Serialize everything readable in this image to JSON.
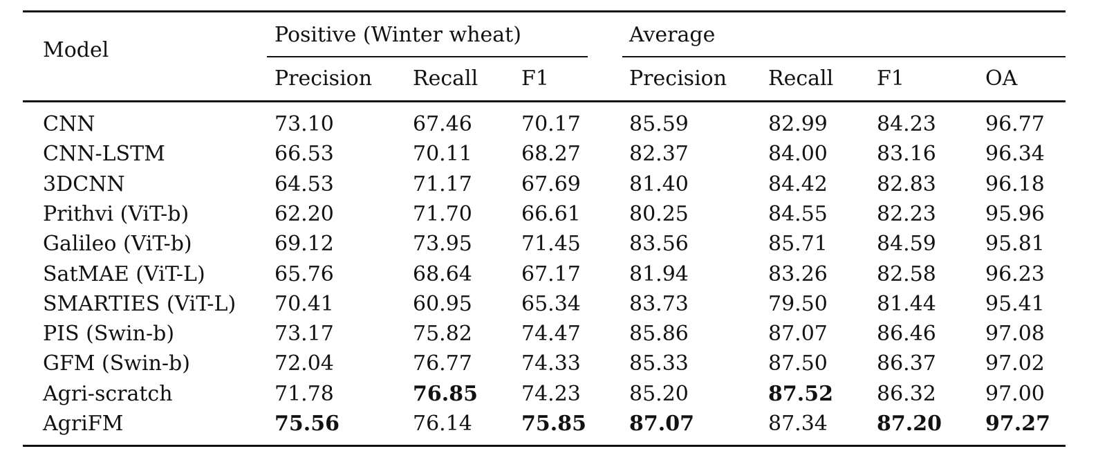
{
  "table": {
    "header": {
      "model_label": "Model",
      "group_positive": "Positive (Winter wheat)",
      "group_average": "Average",
      "sub_columns": [
        "Precision",
        "Recall",
        "F1",
        "Precision",
        "Recall",
        "F1",
        "OA"
      ]
    },
    "rows": [
      {
        "model": "CNN",
        "values": [
          "73.10",
          "67.46",
          "70.17",
          "85.59",
          "82.99",
          "84.23",
          "96.77"
        ],
        "bold": []
      },
      {
        "model": "CNN-LSTM",
        "values": [
          "66.53",
          "70.11",
          "68.27",
          "82.37",
          "84.00",
          "83.16",
          "96.34"
        ],
        "bold": []
      },
      {
        "model": "3DCNN",
        "values": [
          "64.53",
          "71.17",
          "67.69",
          "81.40",
          "84.42",
          "82.83",
          "96.18"
        ],
        "bold": []
      },
      {
        "model": "Prithvi (ViT-b)",
        "values": [
          "62.20",
          "71.70",
          "66.61",
          "80.25",
          "84.55",
          "82.23",
          "95.96"
        ],
        "bold": []
      },
      {
        "model": "Galileo (ViT-b)",
        "values": [
          "69.12",
          "73.95",
          "71.45",
          "83.56",
          "85.71",
          "84.59",
          "95.81"
        ],
        "bold": []
      },
      {
        "model": "SatMAE (ViT-L)",
        "values": [
          "65.76",
          "68.64",
          "67.17",
          "81.94",
          "83.26",
          "82.58",
          "96.23"
        ],
        "bold": []
      },
      {
        "model": "SMARTIES (ViT-L)",
        "values": [
          "70.41",
          "60.95",
          "65.34",
          "83.73",
          "79.50",
          "81.44",
          "95.41"
        ],
        "bold": []
      },
      {
        "model": "PIS (Swin-b)",
        "values": [
          "73.17",
          "75.82",
          "74.47",
          "85.86",
          "87.07",
          "86.46",
          "97.08"
        ],
        "bold": []
      },
      {
        "model": "GFM (Swin-b)",
        "values": [
          "72.04",
          "76.77",
          "74.33",
          "85.33",
          "87.50",
          "86.37",
          "97.02"
        ],
        "bold": []
      },
      {
        "model": "Agri-scratch",
        "values": [
          "71.78",
          "76.85",
          "74.23",
          "85.20",
          "87.52",
          "86.32",
          "97.00"
        ],
        "bold": [
          1,
          4
        ]
      },
      {
        "model": "AgriFM",
        "values": [
          "75.56",
          "76.14",
          "75.85",
          "87.07",
          "87.34",
          "87.20",
          "97.27"
        ],
        "bold": [
          0,
          2,
          3,
          5,
          6
        ]
      }
    ]
  }
}
